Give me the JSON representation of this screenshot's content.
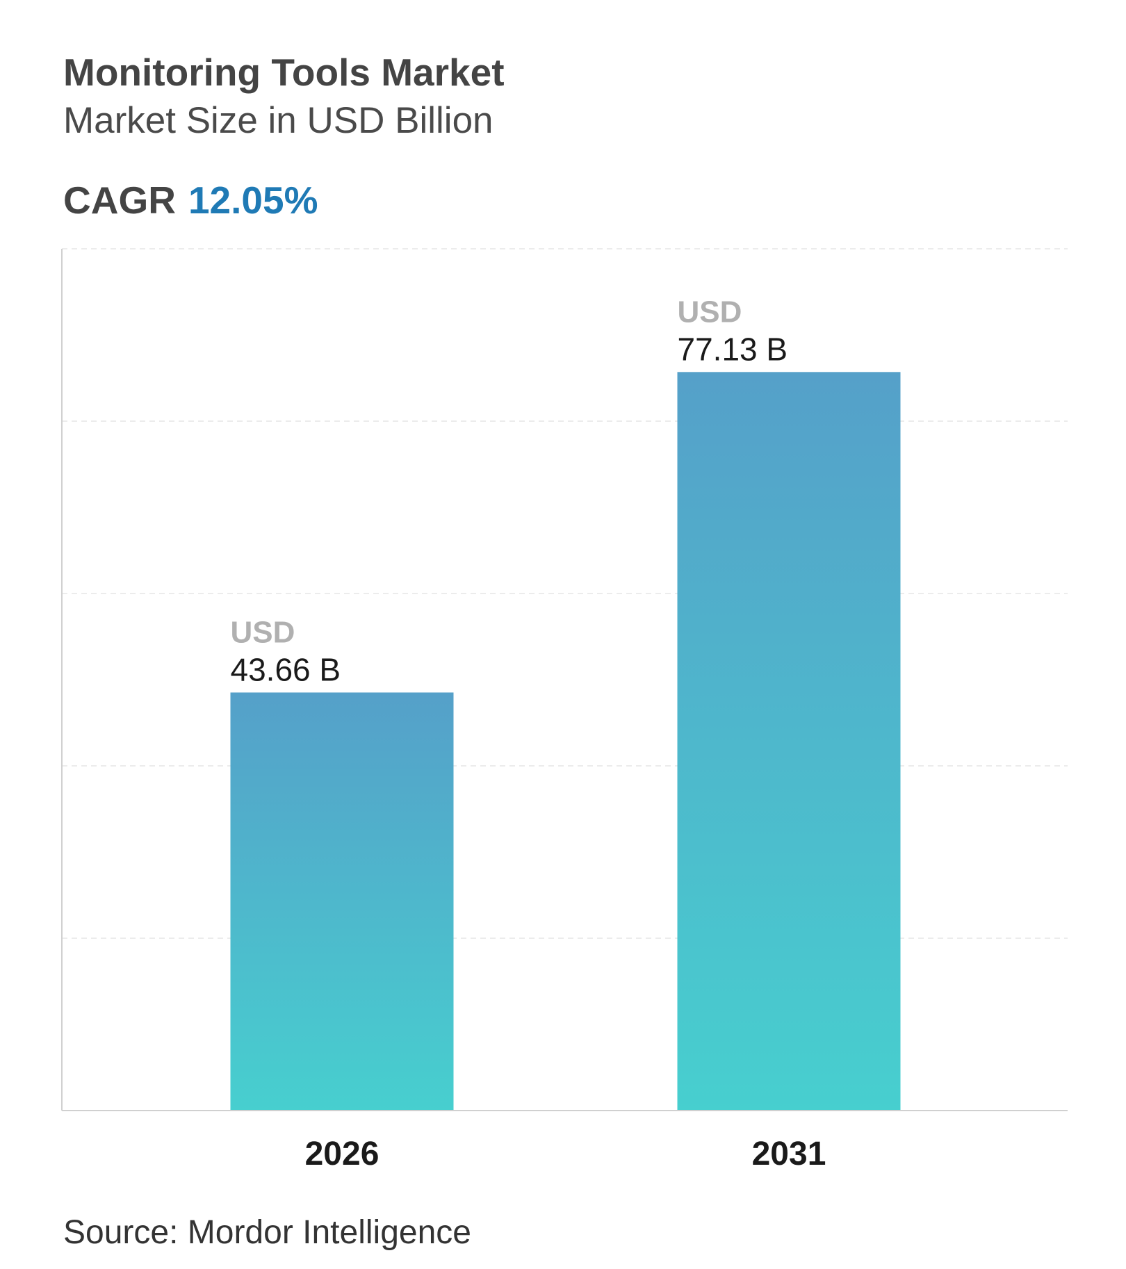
{
  "header": {
    "title": "Monitoring Tools Market",
    "subtitle": "Market Size in USD Billion",
    "cagr_label": "CAGR",
    "cagr_value": "12.05%"
  },
  "chart_data": {
    "type": "bar",
    "categories": [
      "2026",
      "2031"
    ],
    "values": [
      43.66,
      77.13
    ],
    "value_prefix": "USD",
    "value_labels": [
      "43.66 B",
      "77.13 B"
    ],
    "ylim": [
      0,
      90
    ],
    "grid": true,
    "colors": {
      "bar_top": "#55a0c9",
      "bar_bottom": "#47cfcf",
      "grid": "#e6e6e6",
      "axis": "#d0d0d0",
      "prefix_text": "#b0b0b0",
      "value_text": "#1a1a1a"
    }
  },
  "footer": {
    "source": "Source: Mordor Intelligence"
  }
}
